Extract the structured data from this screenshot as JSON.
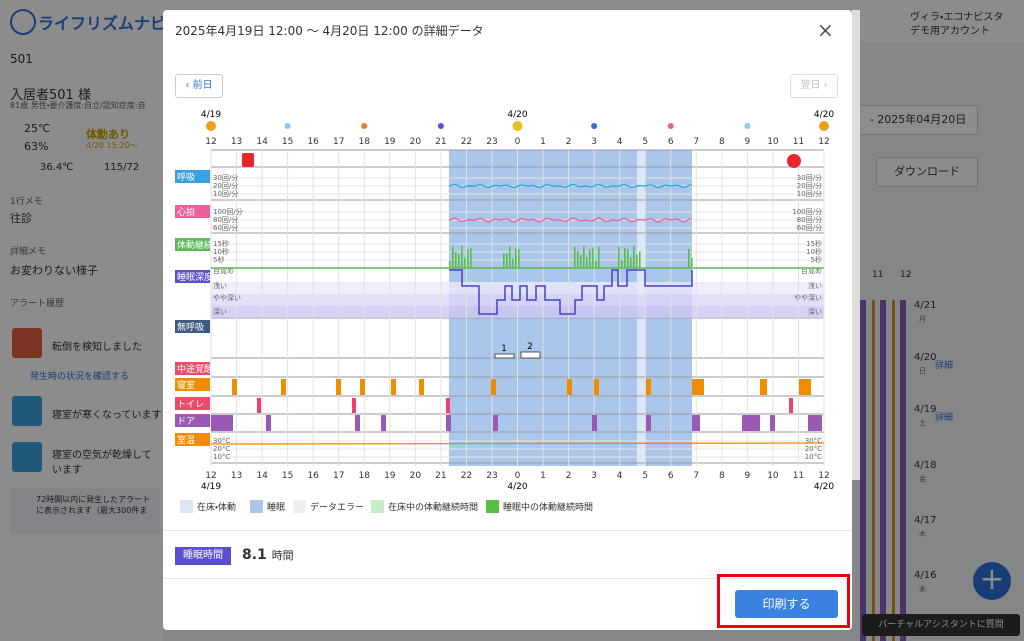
{
  "header": {
    "logo": "ライフリズムナビ+Dr.",
    "user": "ヴィラ・エコナビスタ",
    "account": "デモ用アカウント"
  },
  "sidebar": {
    "room": "501",
    "resident": "入居者501 様",
    "profile": "81歳 男性・要介護度:自立/認知症度:自",
    "temp": "25℃",
    "humidity": "63%",
    "status": "体動あり",
    "status_time": "4/20 15:20～",
    "body_temp": "36.4℃",
    "bp": "115/72",
    "memo_label": "1行メモ",
    "memo": "往診",
    "detail_memo_label": "詳細メモ",
    "detail_memo": "お変わりない様子",
    "alert_label": "アラート履歴",
    "alerts": [
      "転倒を検知しました",
      "寝室が寒くなっています",
      "寝室の空気が乾燥しています"
    ],
    "alert_link": "発生時の状況を確認する",
    "notice": "72時間以内に発生したアラートに表示されます（最大300件ま"
  },
  "background": {
    "date_range": "- 2025年04月20日",
    "download": "ダウンロード",
    "hours": [
      "11",
      "12"
    ],
    "dates": [
      [
        "4/21",
        "月"
      ],
      [
        "4/20",
        "日"
      ],
      [
        "4/19",
        "土"
      ],
      [
        "4/18",
        "金"
      ],
      [
        "4/17",
        "木"
      ],
      [
        "4/16",
        "水"
      ]
    ],
    "detail": "詳細",
    "assistant": "バーチャルアシスタントに質問"
  },
  "modal": {
    "title": "2025年4月19日 12:00 ～ 4月20日 12:00 の詳細データ",
    "prev": "前日",
    "next": "翌日",
    "dates": [
      "4/19",
      "4/20",
      "4/20"
    ],
    "hours": [
      12,
      13,
      14,
      15,
      16,
      17,
      18,
      19,
      20,
      21,
      22,
      23,
      0,
      1,
      2,
      3,
      4,
      5,
      6,
      7,
      8,
      9,
      10,
      11,
      12
    ],
    "rows": [
      "呼吸",
      "心拍",
      "体動継続",
      "睡眠深度",
      "無呼吸",
      "中途覚醒",
      "寝室",
      "トイレ",
      "ドア",
      "室温"
    ],
    "scales": {
      "resp": [
        "30回/分",
        "20回/分",
        "10回/分"
      ],
      "heart": [
        "100回/分",
        "80回/分",
        "60回/分"
      ],
      "move": [
        "15秒",
        "10秒",
        "5秒"
      ],
      "depth": [
        "目覚め",
        "浅い",
        "やや深い",
        "深い"
      ],
      "temp": [
        "30°C",
        "20°C",
        "10°C"
      ]
    },
    "apnea": [
      "1",
      "2"
    ],
    "legend": [
      "在床・体動",
      "睡眠",
      "データエラー",
      "在床中の体動継続時間",
      "睡眠中の体動継続時間"
    ],
    "sleep_label": "睡眠時間",
    "sleep_value": "8.1",
    "sleep_unit": "時間",
    "print": "印刷する"
  }
}
